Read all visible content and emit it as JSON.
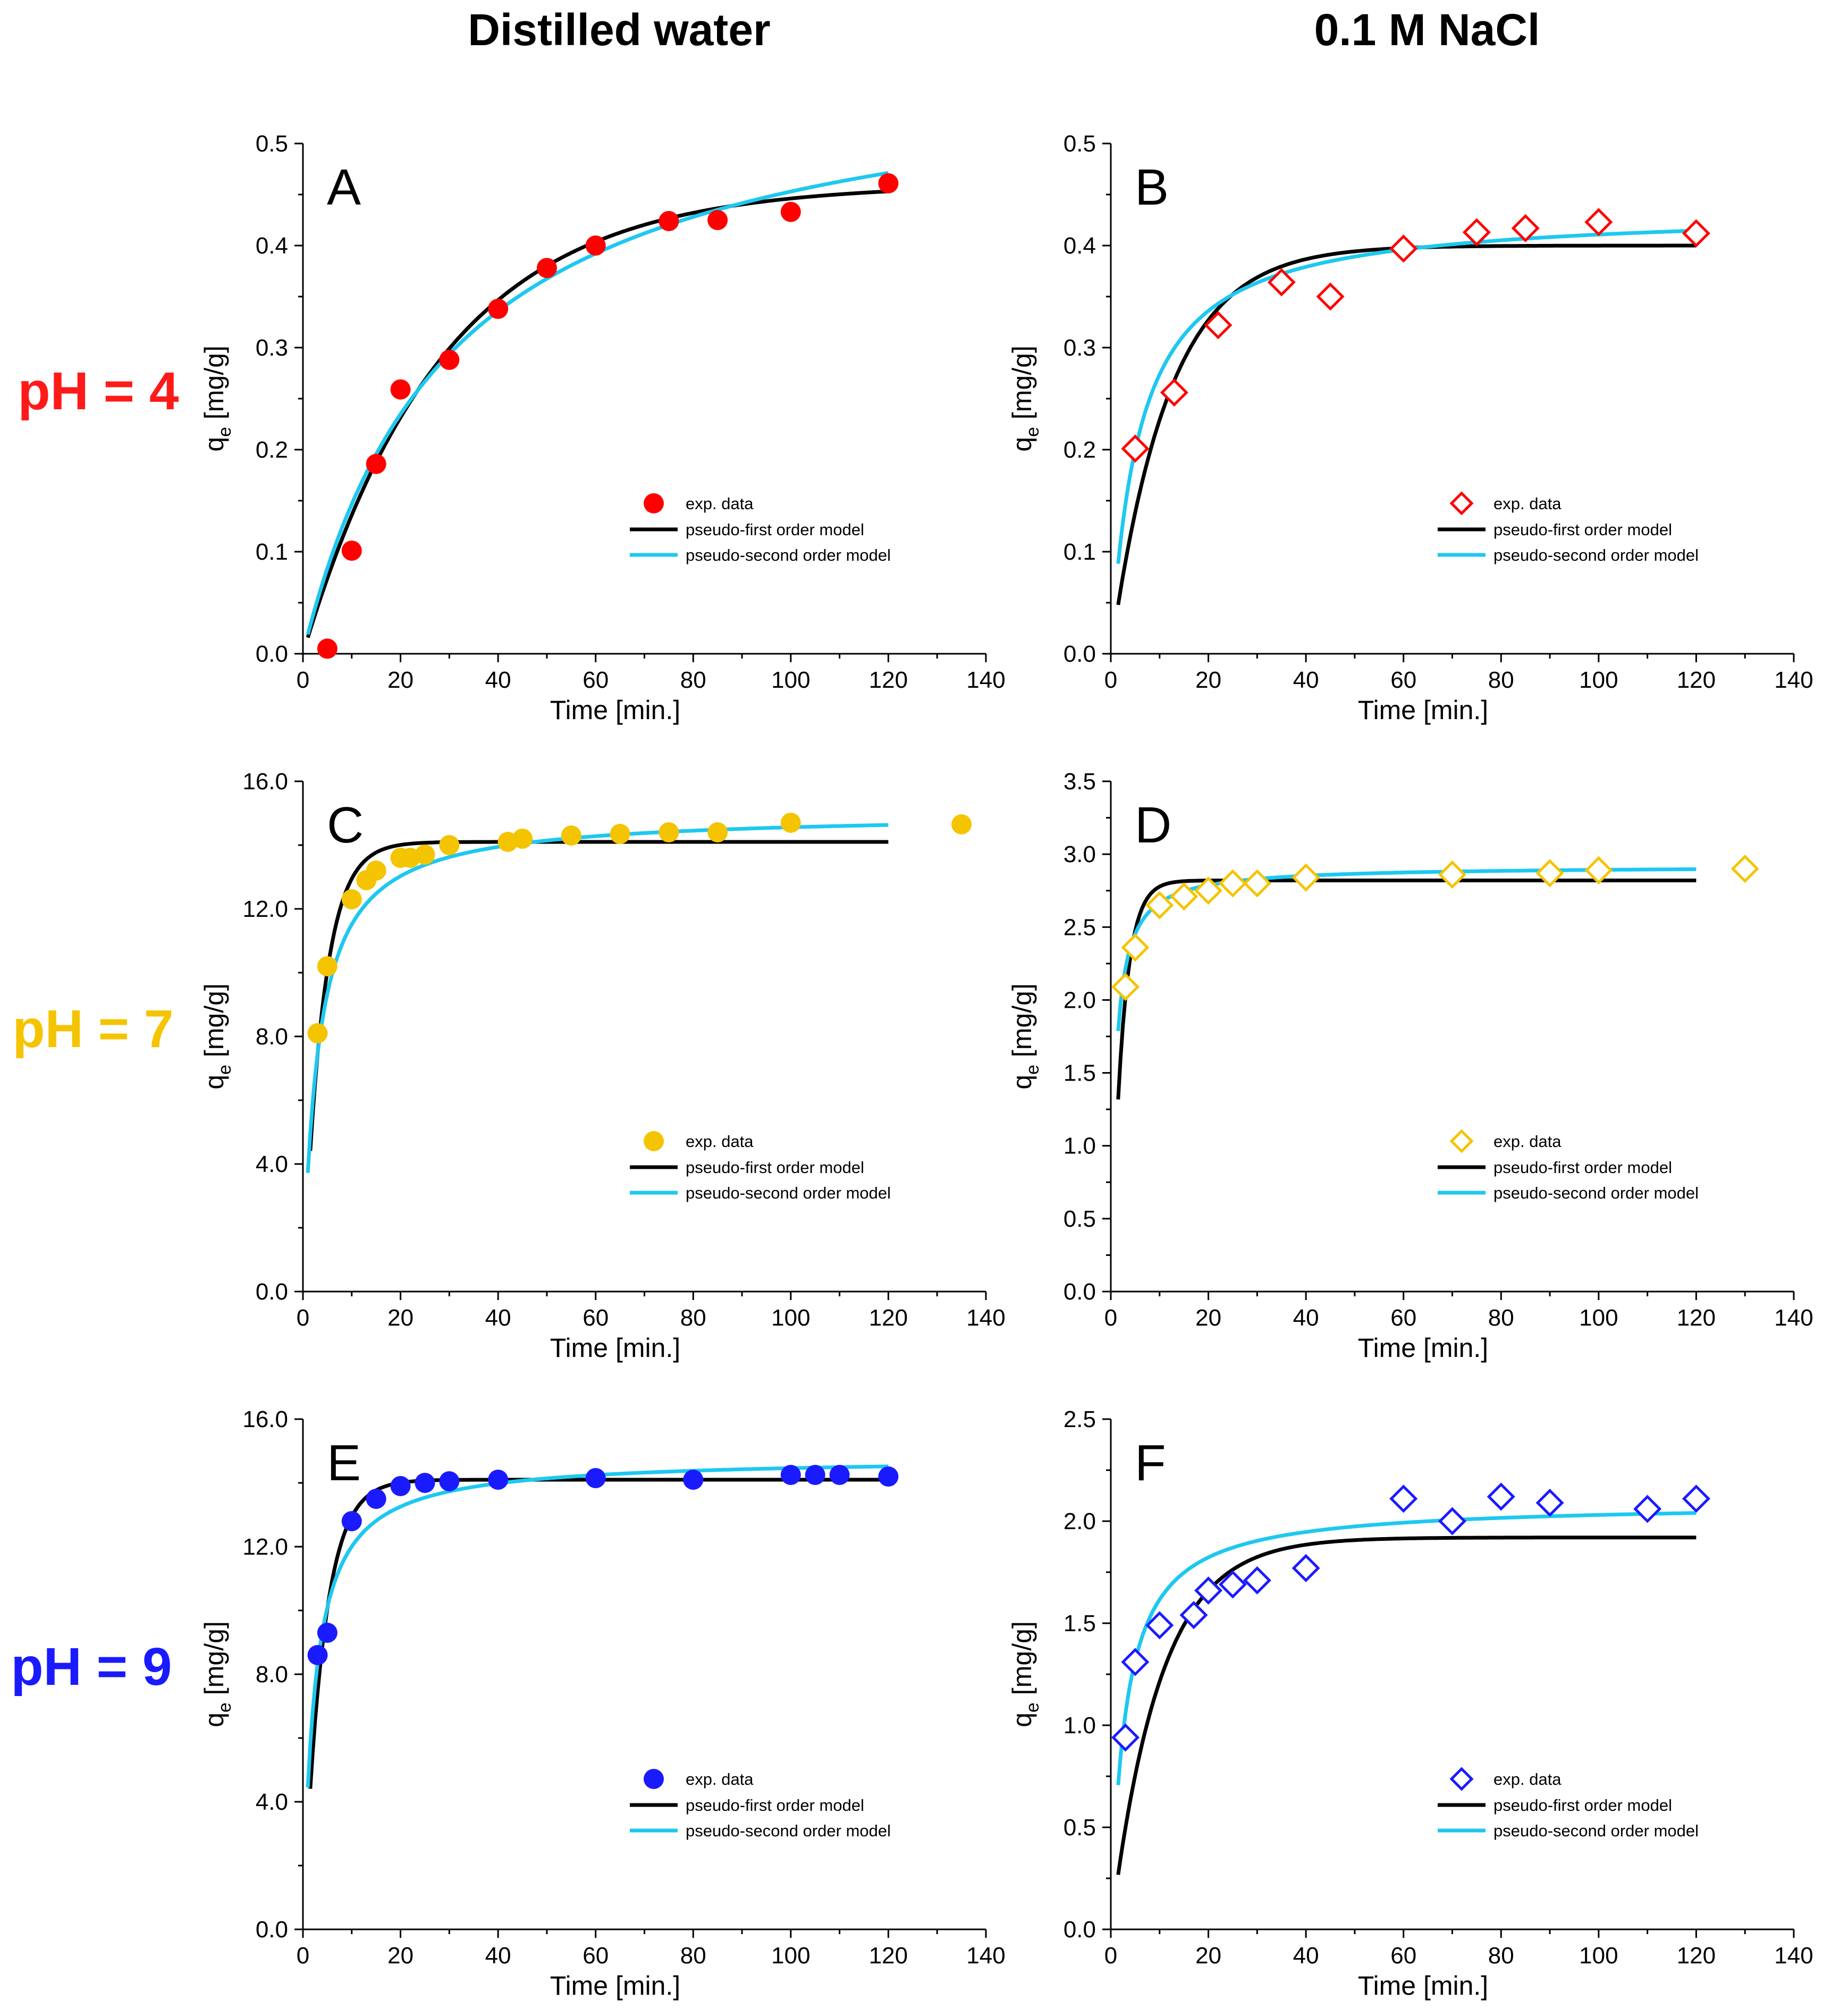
{
  "figure": {
    "column_titles": [
      "Distilled water",
      "0.1 M NaCl"
    ],
    "row_labels": [
      {
        "text": "pH = 4",
        "color": "#ff1a1a"
      },
      {
        "text": "pH = 7",
        "color": "#f5c400"
      },
      {
        "text": "pH = 9",
        "color": "#1a1aff"
      }
    ],
    "legend_labels": {
      "exp": "exp. data",
      "pfo": "pseudo-first order model",
      "pso": "pseudo-second order model"
    },
    "colors": {
      "pfo": "#000000",
      "pso": "#1ec8f0"
    }
  },
  "chart_data": [
    {
      "type": "scatter",
      "panel": "A",
      "row": 0,
      "col": 0,
      "xlabel": "Time [min.]",
      "ylabel": "q_e [mg/g]",
      "xlim": [
        0,
        140
      ],
      "ylim": [
        0,
        0.5
      ],
      "xticks": [
        "0",
        "20",
        "40",
        "60",
        "80",
        "100",
        "120",
        "140"
      ],
      "yticks": [
        "0.0",
        "0.1",
        "0.2",
        "0.3",
        "0.4",
        "0.5"
      ],
      "marker": "circle",
      "marker_color": "#ff0000",
      "series": [
        {
          "name": "exp. data",
          "x": [
            5,
            10,
            15,
            20,
            30,
            40,
            50,
            60,
            75,
            85,
            100,
            120
          ],
          "y": [
            0.005,
            0.101,
            0.186,
            0.259,
            0.288,
            0.338,
            0.378,
            0.4,
            0.424,
            0.425,
            0.433,
            0.461
          ]
        },
        {
          "name": "pseudo-first order model",
          "model": "pfo",
          "qe": 0.46,
          "k": 0.035,
          "x0": 1,
          "x1": 120
        },
        {
          "name": "pseudo-second order model",
          "model": "pso",
          "qe": 0.59,
          "k": 0.056,
          "x0": 1,
          "x1": 120
        }
      ]
    },
    {
      "type": "scatter",
      "panel": "B",
      "row": 0,
      "col": 1,
      "xlabel": "Time [min.]",
      "ylabel": "q_e [mg/g]",
      "xlim": [
        0,
        140
      ],
      "ylim": [
        0,
        0.5
      ],
      "xticks": [
        "0",
        "20",
        "40",
        "60",
        "80",
        "100",
        "120",
        "140"
      ],
      "yticks": [
        "0.0",
        "0.1",
        "0.2",
        "0.3",
        "0.4",
        "0.5"
      ],
      "marker": "diamond",
      "marker_color": "#ff0000",
      "series": [
        {
          "name": "exp. data",
          "x": [
            5,
            13,
            22,
            35,
            45,
            60,
            75,
            85,
            100,
            120
          ],
          "y": [
            0.201,
            0.256,
            0.322,
            0.364,
            0.35,
            0.397,
            0.413,
            0.417,
            0.423,
            0.412
          ]
        },
        {
          "name": "pseudo-first order model",
          "model": "pfo",
          "qe": 0.4,
          "k": 0.085,
          "x0": 1.5,
          "x1": 120
        },
        {
          "name": "pseudo-second order model",
          "model": "pso",
          "qe": 0.435,
          "k": 0.39,
          "x0": 1.5,
          "x1": 120
        }
      ]
    },
    {
      "type": "scatter",
      "panel": "C",
      "row": 1,
      "col": 0,
      "xlabel": "Time [min.]",
      "ylabel": "q_e [mg/g]",
      "xlim": [
        0,
        140
      ],
      "ylim": [
        0,
        16
      ],
      "xticks": [
        "0",
        "20",
        "40",
        "60",
        "80",
        "100",
        "120",
        "140"
      ],
      "yticks": [
        "0.0",
        "4.0",
        "8.0",
        "12.0",
        "16.0"
      ],
      "marker": "circle",
      "marker_color": "#f5c400",
      "series": [
        {
          "name": "exp. data",
          "x": [
            3,
            5,
            10,
            13,
            15,
            20,
            22,
            25,
            30,
            42,
            45,
            55,
            65,
            75,
            85,
            100,
            135
          ],
          "y": [
            8.1,
            10.2,
            12.3,
            12.9,
            13.2,
            13.6,
            13.6,
            13.7,
            14.0,
            14.1,
            14.2,
            14.3,
            14.35,
            14.4,
            14.4,
            14.7,
            14.65
          ]
        },
        {
          "name": "pseudo-first order model",
          "model": "pfo",
          "qe": 14.1,
          "k": 0.25,
          "x0": 1.5,
          "x1": 120
        },
        {
          "name": "pseudo-second order model",
          "model": "pso",
          "qe": 15.0,
          "k": 0.022,
          "x0": 1,
          "x1": 120
        }
      ]
    },
    {
      "type": "scatter",
      "panel": "D",
      "row": 1,
      "col": 1,
      "xlabel": "Time [min.]",
      "ylabel": "q_e [mg/g]",
      "xlim": [
        0,
        140
      ],
      "ylim": [
        0,
        3.5
      ],
      "xticks": [
        "0",
        "20",
        "40",
        "60",
        "80",
        "100",
        "120",
        "140"
      ],
      "yticks": [
        "0.0",
        "0.5",
        "1.0",
        "1.5",
        "2.0",
        "2.5",
        "3.0",
        "3.5"
      ],
      "marker": "diamond",
      "marker_color": "#f5c400",
      "series": [
        {
          "name": "exp. data",
          "x": [
            3,
            5,
            10,
            15,
            20,
            25,
            30,
            40,
            70,
            90,
            100,
            130
          ],
          "y": [
            2.09,
            2.36,
            2.65,
            2.71,
            2.75,
            2.8,
            2.8,
            2.84,
            2.86,
            2.87,
            2.89,
            2.9
          ]
        },
        {
          "name": "pseudo-first order model",
          "model": "pfo",
          "qe": 2.82,
          "k": 0.42,
          "x0": 1.5,
          "x1": 120
        },
        {
          "name": "pseudo-second order model",
          "model": "pso",
          "qe": 2.92,
          "k": 0.36,
          "x0": 1.5,
          "x1": 120
        }
      ]
    },
    {
      "type": "scatter",
      "panel": "E",
      "row": 2,
      "col": 0,
      "xlabel": "Time [min.]",
      "ylabel": "q_e [mg/g]",
      "xlim": [
        0,
        140
      ],
      "ylim": [
        0,
        16
      ],
      "xticks": [
        "0",
        "20",
        "40",
        "60",
        "80",
        "100",
        "120",
        "140"
      ],
      "yticks": [
        "0.0",
        "4.0",
        "8.0",
        "12.0",
        "16.0"
      ],
      "marker": "circle",
      "marker_color": "#1a1aff",
      "series": [
        {
          "name": "exp. data",
          "x": [
            3,
            5,
            10,
            15,
            20,
            25,
            30,
            40,
            60,
            80,
            100,
            105,
            110,
            120
          ],
          "y": [
            8.6,
            9.3,
            12.8,
            13.5,
            13.9,
            14.0,
            14.05,
            14.1,
            14.15,
            14.1,
            14.25,
            14.25,
            14.25,
            14.2
          ]
        },
        {
          "name": "pseudo-first order model",
          "model": "pfo",
          "qe": 14.1,
          "k": 0.25,
          "x0": 1.5,
          "x1": 120
        },
        {
          "name": "pseudo-second order model",
          "model": "pso",
          "qe": 14.8,
          "k": 0.029,
          "x0": 1,
          "x1": 120
        }
      ]
    },
    {
      "type": "scatter",
      "panel": "F",
      "row": 2,
      "col": 1,
      "xlabel": "Time [min.]",
      "ylabel": "q_e [mg/g]",
      "xlim": [
        0,
        140
      ],
      "ylim": [
        0,
        2.5
      ],
      "xticks": [
        "0",
        "20",
        "40",
        "60",
        "80",
        "100",
        "120",
        "140"
      ],
      "yticks": [
        "0.0",
        "0.5",
        "1.0",
        "1.5",
        "2.0",
        "2.5"
      ],
      "marker": "diamond",
      "marker_color": "#1a1aff",
      "series": [
        {
          "name": "exp. data",
          "x": [
            3,
            5,
            10,
            17,
            20,
            25,
            30,
            40,
            60,
            70,
            80,
            90,
            110,
            120
          ],
          "y": [
            0.94,
            1.31,
            1.49,
            1.54,
            1.66,
            1.69,
            1.71,
            1.77,
            2.11,
            2.0,
            2.12,
            2.09,
            2.06,
            2.11
          ]
        },
        {
          "name": "pseudo-first order model",
          "model": "pfo",
          "qe": 1.92,
          "k": 0.1,
          "x0": 1.5,
          "x1": 120
        },
        {
          "name": "pseudo-second order model",
          "model": "pso",
          "qe": 2.09,
          "k": 0.163,
          "x0": 1.5,
          "x1": 120
        }
      ]
    }
  ]
}
